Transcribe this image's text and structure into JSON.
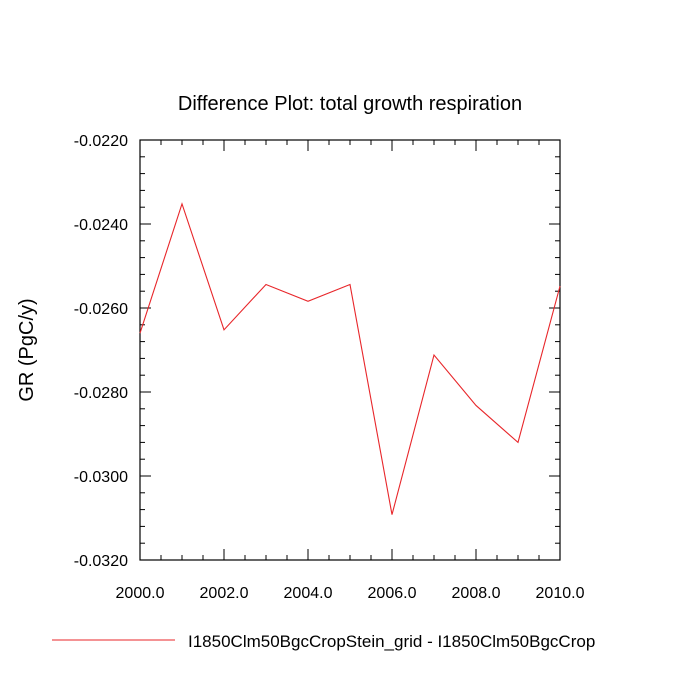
{
  "chart_data": {
    "type": "line",
    "title": "Difference Plot: total growth respiration",
    "xlabel": "",
    "ylabel": "GR  (PgC/y)",
    "xlim": [
      2000,
      2010
    ],
    "ylim": [
      -0.032,
      -0.022
    ],
    "xticks": [
      "2000.0",
      "2002.0",
      "2004.0",
      "2006.0",
      "2008.0",
      "2010.0"
    ],
    "yticks": [
      "-0.0220",
      "-0.0240",
      "-0.0260",
      "-0.0280",
      "-0.0300",
      "-0.0320"
    ],
    "grid": false,
    "legend_position": "bottom",
    "series": [
      {
        "name": "I1850Clm50BgcCropStein_grid - I1850Clm50BgcCrop",
        "color": "#e8262a",
        "x": [
          2000,
          2001,
          2002,
          2003,
          2004,
          2005,
          2006,
          2007,
          2008,
          2009,
          2010
        ],
        "y": [
          -0.0266,
          -0.02352,
          -0.02652,
          -0.02544,
          -0.02584,
          -0.02544,
          -0.03092,
          -0.02712,
          -0.02832,
          -0.0292,
          -0.02548
        ]
      }
    ]
  }
}
